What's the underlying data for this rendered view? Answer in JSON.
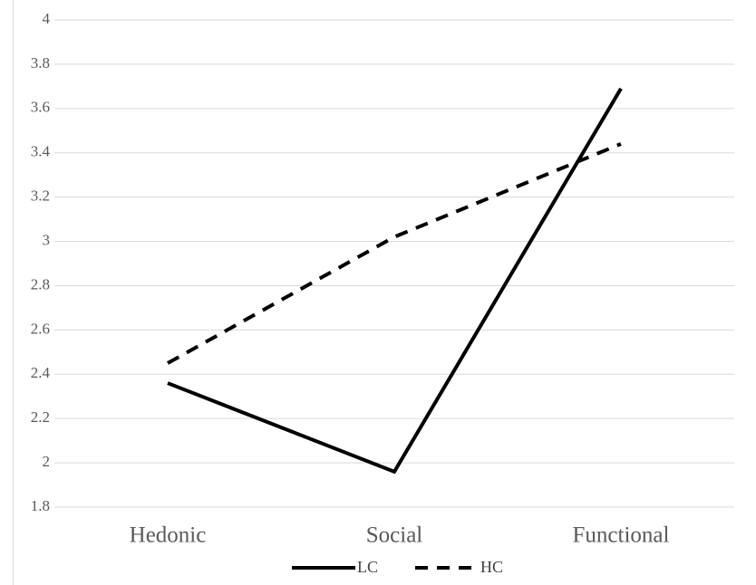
{
  "chart_data": {
    "type": "line",
    "categories": [
      "Hedonic",
      "Social",
      "Functional"
    ],
    "series": [
      {
        "name": "LC",
        "color": "#000000",
        "style": "solid",
        "values": [
          2.36,
          1.96,
          3.69
        ]
      },
      {
        "name": "HC",
        "color": "#000000",
        "style": "dashed",
        "values": [
          2.45,
          3.02,
          3.44
        ]
      }
    ],
    "ylim": [
      1.8,
      4
    ],
    "yticks": [
      1.8,
      2,
      2.2,
      2.4,
      2.6,
      2.8,
      3,
      3.2,
      3.4,
      3.6,
      3.8,
      4
    ],
    "grid": true,
    "legend": "bottom"
  }
}
